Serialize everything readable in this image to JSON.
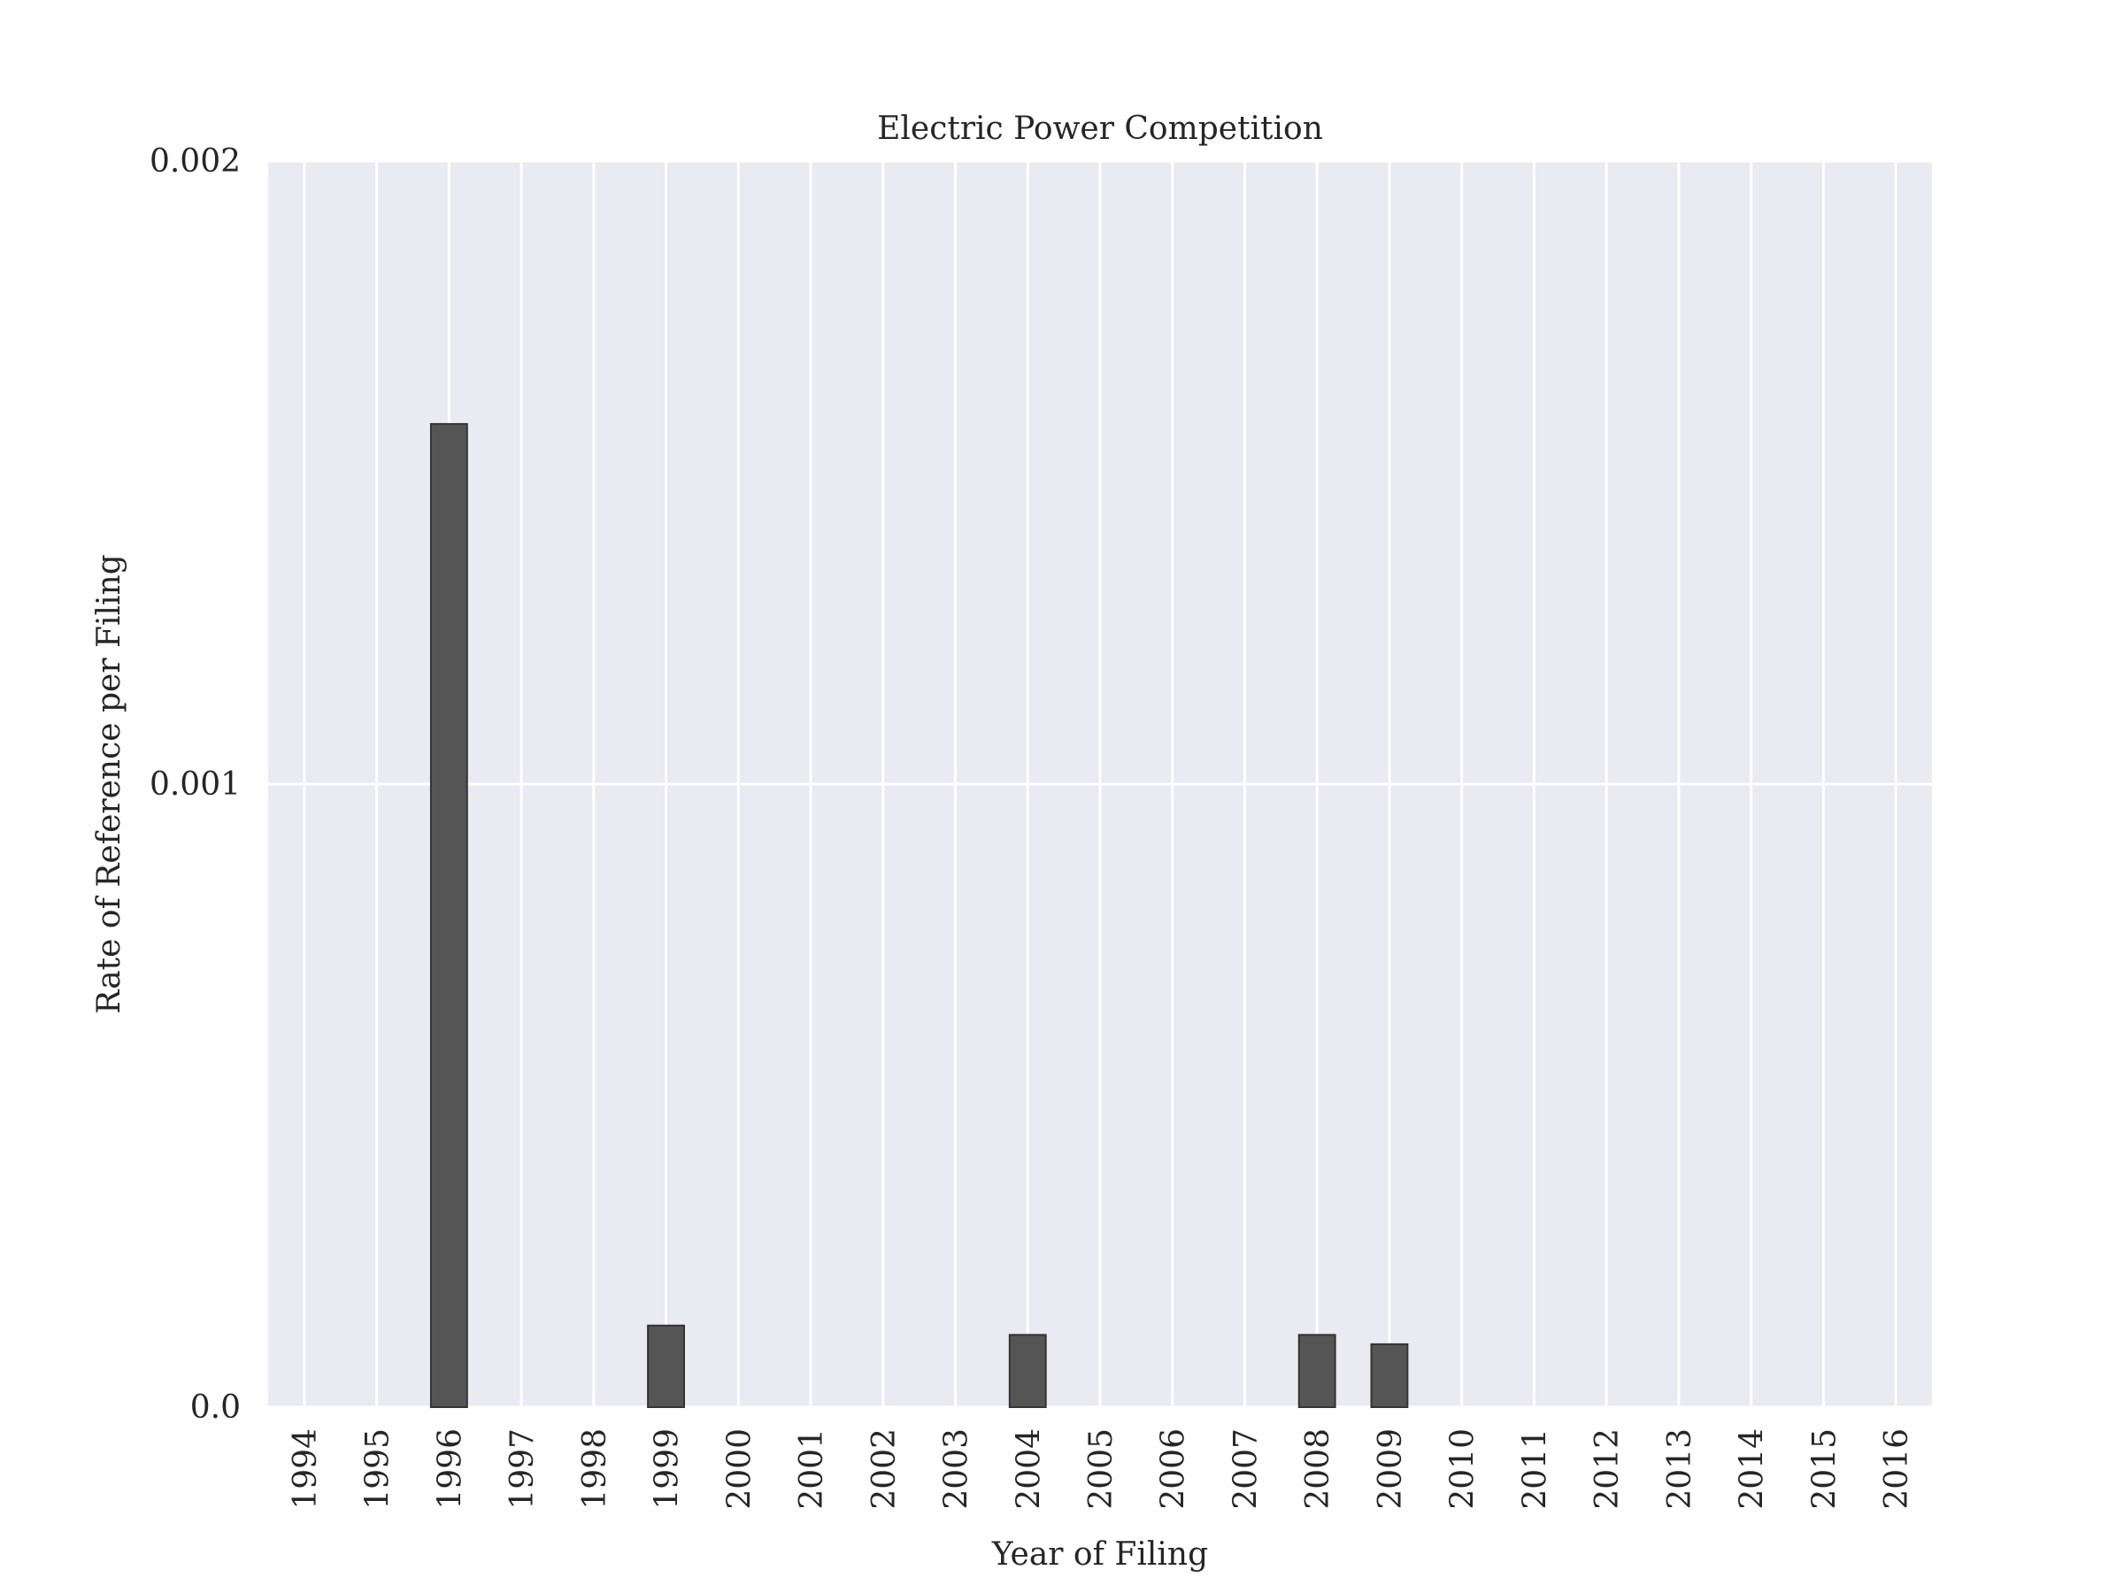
{
  "chart_data": {
    "type": "bar",
    "title": "Electric Power Competition",
    "xlabel": "Year of Filing",
    "ylabel": "Rate of Reference per Filing",
    "categories": [
      "1994",
      "1995",
      "1996",
      "1997",
      "1998",
      "1999",
      "2000",
      "2001",
      "2002",
      "2003",
      "2004",
      "2005",
      "2006",
      "2007",
      "2008",
      "2009",
      "2010",
      "2011",
      "2012",
      "2013",
      "2014",
      "2015",
      "2016"
    ],
    "values": [
      0,
      0,
      0.001578,
      0,
      0,
      0.000131,
      0,
      0,
      0,
      0,
      0.000116,
      0,
      0,
      0,
      0.000116,
      0.000101,
      0,
      0,
      0,
      0,
      0,
      0,
      0
    ],
    "ylim": [
      0,
      0.002
    ],
    "yticks": [
      {
        "value": 0,
        "label": "0.0"
      },
      {
        "value": 0.001,
        "label": "0.001"
      },
      {
        "value": 0.002,
        "label": "0.002"
      }
    ],
    "grid": true,
    "colors": {
      "plot_background": "#eaeaf2",
      "grid": "#ffffff",
      "bar_fill": "#555555",
      "bar_edge": "#333333"
    }
  }
}
